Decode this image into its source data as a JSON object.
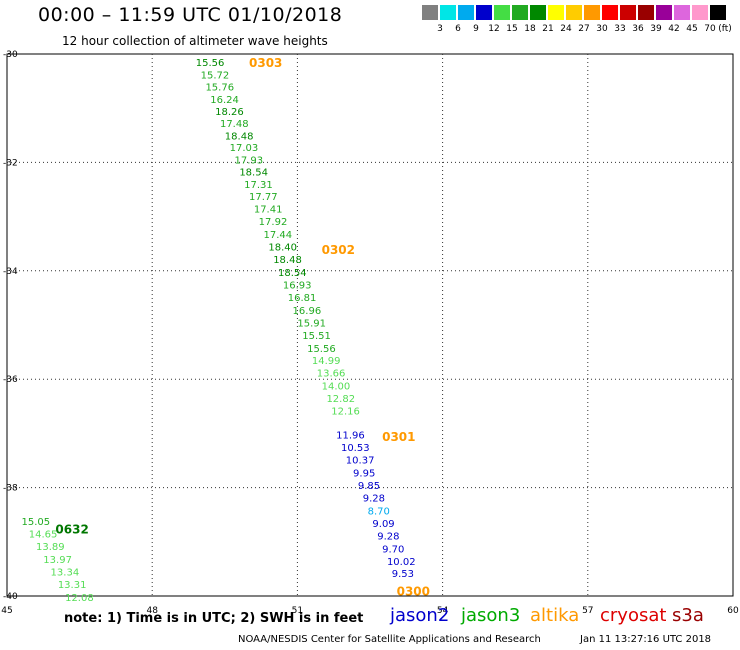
{
  "title": "00:00  –  11:59 UTC 01/10/2018",
  "subtitle": "12 hour collection of altimeter wave heights",
  "color_scale": {
    "labels": [
      "3",
      "6",
      "9",
      "12",
      "15",
      "18",
      "21",
      "24",
      "27",
      "30",
      "33",
      "36",
      "39",
      "42",
      "45",
      "70"
    ],
    "unit": "(ft)",
    "colors": [
      "#808080",
      "#00e6e6",
      "#00aaee",
      "#0000cc",
      "#44dd44",
      "#22aa22",
      "#008800",
      "#ffff00",
      "#ffcc00",
      "#ff9900",
      "#ff0000",
      "#cc0000",
      "#990000",
      "#990099",
      "#dd66dd",
      "#ff99cc",
      "#000000"
    ]
  },
  "note": "note:  1) Time is in UTC;  2) SWH is in feet",
  "satellites": [
    {
      "name": "jason2",
      "color": "#0000cc"
    },
    {
      "name": "jason3",
      "color": "#00aa00"
    },
    {
      "name": "altika",
      "color": "#ff9900"
    },
    {
      "name": "cryosat",
      "color": "#dd0000"
    },
    {
      "name": "s3a",
      "color": "#990000"
    }
  ],
  "footer_left": "NOAA/NESDIS Center for Satellite Applications and Research",
  "footer_right": "Jan 11 13:27:16 UTC 2018",
  "chart_data": {
    "type": "scatter",
    "title": "00:00  –  11:59 UTC 01/10/2018",
    "subtitle": "12 hour collection of altimeter wave heights",
    "xlim": [
      45,
      60
    ],
    "ylim": [
      -40,
      -30
    ],
    "x_ticks": [
      45,
      48,
      51,
      54,
      57,
      60
    ],
    "y_ticks": [
      -30,
      -32,
      -34,
      -36,
      -38,
      -40
    ],
    "grid": true,
    "time_labels": [
      {
        "text": "0303",
        "x": 50.0,
        "y": -30.15,
        "color": "#ff9900"
      },
      {
        "text": "0302",
        "x": 51.5,
        "y": -33.6,
        "color": "#ff9900"
      },
      {
        "text": "0301",
        "x": 52.75,
        "y": -37.05,
        "color": "#ff9900"
      },
      {
        "text": "0300",
        "x": 53.05,
        "y": -39.9,
        "color": "#ff9900"
      },
      {
        "text": "0632",
        "x": 46.0,
        "y": -38.75,
        "color": "#007700"
      }
    ],
    "points": [
      {
        "v": "15.56",
        "x": 48.9,
        "y": -30.15,
        "c": "#008800"
      },
      {
        "v": "15.72",
        "x": 49.0,
        "y": -30.38,
        "c": "#22aa22"
      },
      {
        "v": "15.76",
        "x": 49.1,
        "y": -30.6,
        "c": "#22aa22"
      },
      {
        "v": "16.24",
        "x": 49.2,
        "y": -30.83,
        "c": "#22aa22"
      },
      {
        "v": "18.26",
        "x": 49.3,
        "y": -31.05,
        "c": "#008800"
      },
      {
        "v": "17.48",
        "x": 49.4,
        "y": -31.27,
        "c": "#22aa22"
      },
      {
        "v": "18.48",
        "x": 49.5,
        "y": -31.5,
        "c": "#008800"
      },
      {
        "v": "17.03",
        "x": 49.6,
        "y": -31.72,
        "c": "#22aa22"
      },
      {
        "v": "17.93",
        "x": 49.7,
        "y": -31.95,
        "c": "#22aa22"
      },
      {
        "v": "18.54",
        "x": 49.8,
        "y": -32.17,
        "c": "#008800"
      },
      {
        "v": "17.31",
        "x": 49.9,
        "y": -32.4,
        "c": "#22aa22"
      },
      {
        "v": "17.77",
        "x": 50.0,
        "y": -32.62,
        "c": "#22aa22"
      },
      {
        "v": "17.41",
        "x": 50.1,
        "y": -32.85,
        "c": "#22aa22"
      },
      {
        "v": "17.92",
        "x": 50.2,
        "y": -33.08,
        "c": "#22aa22"
      },
      {
        "v": "17.44",
        "x": 50.3,
        "y": -33.32,
        "c": "#22aa22"
      },
      {
        "v": "18.40",
        "x": 50.4,
        "y": -33.55,
        "c": "#008800"
      },
      {
        "v": "18.48",
        "x": 50.5,
        "y": -33.78,
        "c": "#008800"
      },
      {
        "v": "18.54",
        "x": 50.6,
        "y": -34.02,
        "c": "#008800"
      },
      {
        "v": "16.93",
        "x": 50.7,
        "y": -34.25,
        "c": "#22aa22"
      },
      {
        "v": "16.81",
        "x": 50.8,
        "y": -34.48,
        "c": "#22aa22"
      },
      {
        "v": "16.96",
        "x": 50.9,
        "y": -34.72,
        "c": "#22aa22"
      },
      {
        "v": "15.91",
        "x": 51.0,
        "y": -34.95,
        "c": "#22aa22"
      },
      {
        "v": "15.51",
        "x": 51.1,
        "y": -35.18,
        "c": "#22aa22"
      },
      {
        "v": "15.56",
        "x": 51.2,
        "y": -35.42,
        "c": "#22aa22"
      },
      {
        "v": "14.99",
        "x": 51.3,
        "y": -35.65,
        "c": "#55dd55"
      },
      {
        "v": "13.66",
        "x": 51.4,
        "y": -35.88,
        "c": "#55dd55"
      },
      {
        "v": "14.00",
        "x": 51.5,
        "y": -36.12,
        "c": "#55dd55"
      },
      {
        "v": "12.82",
        "x": 51.6,
        "y": -36.35,
        "c": "#55dd55"
      },
      {
        "v": "12.16",
        "x": 51.7,
        "y": -36.58,
        "c": "#55dd55"
      },
      {
        "v": "11.96",
        "x": 51.8,
        "y": -37.02,
        "c": "#0000cc"
      },
      {
        "v": "10.53",
        "x": 51.9,
        "y": -37.25,
        "c": "#0000cc"
      },
      {
        "v": "10.37",
        "x": 52.0,
        "y": -37.48,
        "c": "#0000cc"
      },
      {
        "v": "9.95",
        "x": 52.15,
        "y": -37.72,
        "c": "#0000cc"
      },
      {
        "v": "9.85",
        "x": 52.25,
        "y": -37.95,
        "c": "#0000cc"
      },
      {
        "v": "9.28",
        "x": 52.35,
        "y": -38.18,
        "c": "#0000cc"
      },
      {
        "v": "8.70",
        "x": 52.45,
        "y": -38.42,
        "c": "#00aaee"
      },
      {
        "v": "9.09",
        "x": 52.55,
        "y": -38.65,
        "c": "#0000cc"
      },
      {
        "v": "9.28",
        "x": 52.65,
        "y": -38.88,
        "c": "#0000cc"
      },
      {
        "v": "9.70",
        "x": 52.75,
        "y": -39.12,
        "c": "#0000cc"
      },
      {
        "v": "10.02",
        "x": 52.85,
        "y": -39.35,
        "c": "#0000cc"
      },
      {
        "v": "9.53",
        "x": 52.95,
        "y": -39.58,
        "c": "#0000cc"
      },
      {
        "v": "15.05",
        "x": 45.3,
        "y": -38.62,
        "c": "#22aa22"
      },
      {
        "v": "14.65",
        "x": 45.45,
        "y": -38.85,
        "c": "#55dd55"
      },
      {
        "v": "13.89",
        "x": 45.6,
        "y": -39.08,
        "c": "#55dd55"
      },
      {
        "v": "13.97",
        "x": 45.75,
        "y": -39.32,
        "c": "#55dd55"
      },
      {
        "v": "13.34",
        "x": 45.9,
        "y": -39.55,
        "c": "#55dd55"
      },
      {
        "v": "13.31",
        "x": 46.05,
        "y": -39.78,
        "c": "#55dd55"
      },
      {
        "v": "12.08",
        "x": 46.2,
        "y": -40.02,
        "c": "#55dd55"
      }
    ]
  }
}
